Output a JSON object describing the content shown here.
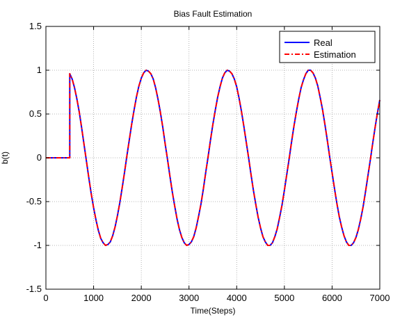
{
  "chart_data": {
    "type": "line",
    "title": "Bias Fault Estimation",
    "xlabel": "Time(Steps)",
    "ylabel": "b(t)",
    "xlim": [
      0,
      7000
    ],
    "ylim": [
      -1.5,
      1.5
    ],
    "xticks": [
      0,
      1000,
      2000,
      3000,
      4000,
      5000,
      6000,
      7000
    ],
    "yticks": [
      -1.5,
      -1,
      -0.5,
      0,
      0.5,
      1,
      1.5
    ],
    "xtick_labels": [
      "0",
      "1000",
      "2000",
      "3000",
      "4000",
      "5000",
      "6000",
      "7000"
    ],
    "ytick_labels": [
      "-1.5",
      "-1",
      "-0.5",
      "0",
      "0.5",
      "1",
      "1.5"
    ],
    "grid": true,
    "legend_position": "top-right",
    "series": [
      {
        "name": "Real",
        "color": "#0000ff",
        "style": "solid",
        "x": [
          0,
          500,
          500,
          550,
          600,
          650,
          700,
          750,
          800,
          850,
          900,
          950,
          1000,
          1050,
          1100,
          1150,
          1200,
          1250,
          1300,
          1350,
          1400,
          1450,
          1500,
          1550,
          1600,
          1650,
          1700,
          1750,
          1800,
          1850,
          1900,
          1950,
          2000,
          2050,
          2100,
          2150,
          2200,
          2250,
          2300,
          2350,
          2400,
          2450,
          2500,
          2550,
          2600,
          2650,
          2700,
          2750,
          2800,
          2850,
          2900,
          2950,
          3000,
          3050,
          3100,
          3150,
          3200,
          3250,
          3300,
          3350,
          3400,
          3450,
          3500,
          3550,
          3600,
          3650,
          3700,
          3750,
          3800,
          3850,
          3900,
          3950,
          4000,
          4050,
          4100,
          4150,
          4200,
          4250,
          4300,
          4350,
          4400,
          4450,
          4500,
          4550,
          4600,
          4650,
          4700,
          4750,
          4800,
          4850,
          4900,
          4950,
          5000,
          5050,
          5100,
          5150,
          5200,
          5250,
          5300,
          5350,
          5400,
          5450,
          5500,
          5550,
          5600,
          5650,
          5700,
          5750,
          5800,
          5850,
          5900,
          5950,
          6000,
          6050,
          6100,
          6150,
          6200,
          6250,
          6300,
          6350,
          6400,
          6450,
          6500,
          6550,
          6600,
          6650,
          6700,
          6750,
          6800,
          6850,
          6900,
          6950,
          7000
        ],
        "y": [
          0,
          0,
          0.96,
          0.9,
          0.8,
          0.67,
          0.52,
          0.34,
          0.15,
          -0.04,
          -0.23,
          -0.41,
          -0.57,
          -0.71,
          -0.83,
          -0.92,
          -0.97,
          -1.0,
          -0.99,
          -0.96,
          -0.89,
          -0.79,
          -0.66,
          -0.51,
          -0.34,
          -0.16,
          0.03,
          0.21,
          0.39,
          0.55,
          0.7,
          0.82,
          0.91,
          0.97,
          1.0,
          0.99,
          0.96,
          0.9,
          0.8,
          0.67,
          0.52,
          0.35,
          0.16,
          -0.02,
          -0.21,
          -0.39,
          -0.55,
          -0.7,
          -0.82,
          -0.91,
          -0.97,
          -1.0,
          -0.99,
          -0.96,
          -0.9,
          -0.8,
          -0.67,
          -0.53,
          -0.36,
          -0.17,
          0.01,
          0.2,
          0.38,
          0.54,
          0.69,
          0.81,
          0.91,
          0.97,
          1.0,
          0.99,
          0.96,
          0.9,
          0.81,
          0.68,
          0.53,
          0.36,
          0.18,
          0.0,
          -0.19,
          -0.37,
          -0.53,
          -0.68,
          -0.8,
          -0.9,
          -0.96,
          -1.0,
          -1.0,
          -0.97,
          -0.9,
          -0.81,
          -0.68,
          -0.54,
          -0.37,
          -0.19,
          -0.01,
          0.18,
          0.36,
          0.52,
          0.67,
          0.8,
          0.89,
          0.96,
          1.0,
          1.0,
          0.97,
          0.91,
          0.82,
          0.69,
          0.55,
          0.38,
          0.2,
          0.01,
          -0.17,
          -0.35,
          -0.52,
          -0.67,
          -0.79,
          -0.89,
          -0.96,
          -1.0,
          -1.0,
          -0.97,
          -0.91,
          -0.82,
          -0.7,
          -0.56,
          -0.39,
          -0.21,
          -0.03,
          0.16,
          0.34,
          0.51,
          0.66
        ]
      },
      {
        "name": "Estimation",
        "color": "#ff0000",
        "style": "dashdot",
        "x": [
          0,
          500,
          500,
          550,
          600,
          650,
          700,
          750,
          800,
          850,
          900,
          950,
          1000,
          1050,
          1100,
          1150,
          1200,
          1250,
          1300,
          1350,
          1400,
          1450,
          1500,
          1550,
          1600,
          1650,
          1700,
          1750,
          1800,
          1850,
          1900,
          1950,
          2000,
          2050,
          2100,
          2150,
          2200,
          2250,
          2300,
          2350,
          2400,
          2450,
          2500,
          2550,
          2600,
          2650,
          2700,
          2750,
          2800,
          2850,
          2900,
          2950,
          3000,
          3050,
          3100,
          3150,
          3200,
          3250,
          3300,
          3350,
          3400,
          3450,
          3500,
          3550,
          3600,
          3650,
          3700,
          3750,
          3800,
          3850,
          3900,
          3950,
          4000,
          4050,
          4100,
          4150,
          4200,
          4250,
          4300,
          4350,
          4400,
          4450,
          4500,
          4550,
          4600,
          4650,
          4700,
          4750,
          4800,
          4850,
          4900,
          4950,
          5000,
          5050,
          5100,
          5150,
          5200,
          5250,
          5300,
          5350,
          5400,
          5450,
          5500,
          5550,
          5600,
          5650,
          5700,
          5750,
          5800,
          5850,
          5900,
          5950,
          6000,
          6050,
          6100,
          6150,
          6200,
          6250,
          6300,
          6350,
          6400,
          6450,
          6500,
          6550,
          6600,
          6650,
          6700,
          6750,
          6800,
          6850,
          6900,
          6950,
          7000
        ],
        "y": [
          0,
          0,
          0.96,
          0.9,
          0.8,
          0.67,
          0.52,
          0.34,
          0.15,
          -0.04,
          -0.23,
          -0.41,
          -0.57,
          -0.71,
          -0.83,
          -0.92,
          -0.97,
          -1.0,
          -0.99,
          -0.96,
          -0.89,
          -0.79,
          -0.66,
          -0.51,
          -0.34,
          -0.16,
          0.03,
          0.21,
          0.39,
          0.55,
          0.7,
          0.82,
          0.91,
          0.97,
          1.0,
          0.99,
          0.96,
          0.9,
          0.8,
          0.67,
          0.52,
          0.35,
          0.16,
          -0.02,
          -0.21,
          -0.39,
          -0.55,
          -0.7,
          -0.82,
          -0.91,
          -0.97,
          -1.0,
          -0.99,
          -0.96,
          -0.9,
          -0.8,
          -0.67,
          -0.53,
          -0.36,
          -0.17,
          0.01,
          0.2,
          0.38,
          0.54,
          0.69,
          0.81,
          0.91,
          0.97,
          1.0,
          0.99,
          0.96,
          0.9,
          0.81,
          0.68,
          0.53,
          0.36,
          0.18,
          0.0,
          -0.19,
          -0.37,
          -0.53,
          -0.68,
          -0.8,
          -0.9,
          -0.96,
          -1.0,
          -1.0,
          -0.97,
          -0.9,
          -0.81,
          -0.68,
          -0.54,
          -0.37,
          -0.19,
          -0.01,
          0.18,
          0.36,
          0.52,
          0.67,
          0.8,
          0.89,
          0.96,
          1.0,
          1.0,
          0.97,
          0.91,
          0.82,
          0.69,
          0.55,
          0.38,
          0.2,
          0.01,
          -0.17,
          -0.35,
          -0.52,
          -0.67,
          -0.79,
          -0.89,
          -0.96,
          -1.0,
          -1.0,
          -0.97,
          -0.91,
          -0.82,
          -0.7,
          -0.56,
          -0.39,
          -0.21,
          -0.03,
          0.16,
          0.34,
          0.51,
          0.66
        ]
      }
    ]
  }
}
